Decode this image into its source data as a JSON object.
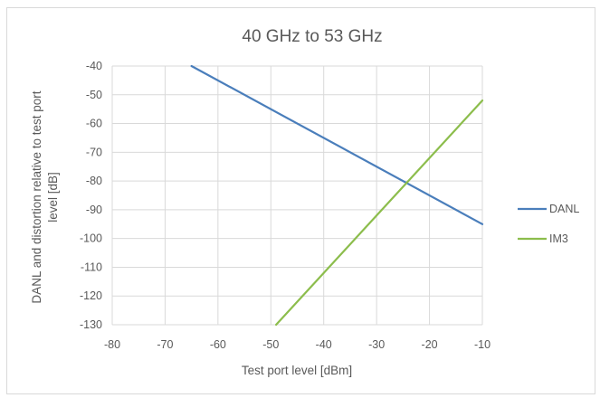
{
  "chart_data": {
    "type": "line",
    "title": "40 GHz to 53 GHz",
    "xlabel": "Test port level [dBm]",
    "ylabel_lines": [
      "DANL and distortion relative to test port",
      "level [dB]"
    ],
    "xlim": [
      -80,
      -10
    ],
    "ylim": [
      -130,
      -40
    ],
    "xticks": [
      -80,
      -70,
      -60,
      -50,
      -40,
      -30,
      -20,
      -10
    ],
    "yticks": [
      -40,
      -50,
      -60,
      -70,
      -80,
      -90,
      -100,
      -110,
      -120,
      -130
    ],
    "grid": true,
    "legend_position": "right",
    "series": [
      {
        "name": "DANL",
        "color": "#4a7ebb",
        "points": [
          [
            -65,
            -40
          ],
          [
            -10,
            -95
          ]
        ]
      },
      {
        "name": "IM3",
        "color": "#8cbd4c",
        "points": [
          [
            -49,
            -130
          ],
          [
            -10,
            -52
          ]
        ]
      }
    ]
  }
}
